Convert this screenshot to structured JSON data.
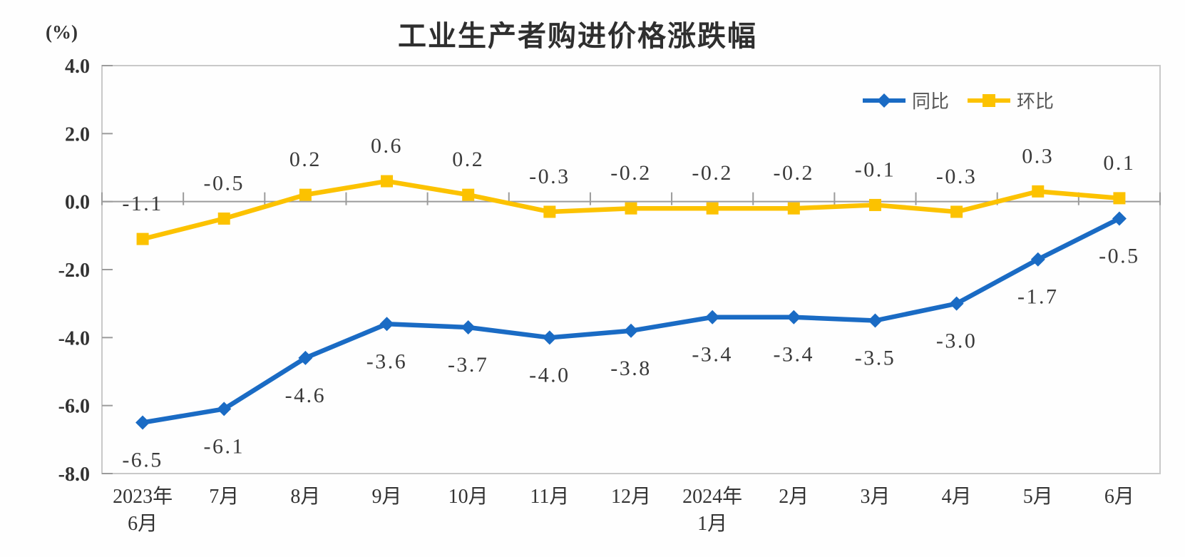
{
  "title": "工业生产者购进价格涨跌幅",
  "unit_label": "(%)",
  "chart_data": {
    "type": "line",
    "title": "工业生产者购进价格涨跌幅",
    "ylabel_unit": "(%)",
    "ylim": [
      -8,
      4
    ],
    "grid": false,
    "legend_position": "top-right-inside",
    "yticks": [
      {
        "value": 4,
        "label": "4.0"
      },
      {
        "value": 2,
        "label": "2.0"
      },
      {
        "value": 0,
        "label": "0.0"
      },
      {
        "value": -2,
        "label": "-2.0"
      },
      {
        "value": -4,
        "label": "-4.0"
      },
      {
        "value": -6,
        "label": "-6.0"
      },
      {
        "value": -8,
        "label": "-8.0"
      }
    ],
    "categories": [
      [
        "2023年",
        "6月"
      ],
      [
        "7月"
      ],
      [
        "8月"
      ],
      [
        "9月"
      ],
      [
        "10月"
      ],
      [
        "11月"
      ],
      [
        "12月"
      ],
      [
        "2024年",
        "1月"
      ],
      [
        "2月"
      ],
      [
        "3月"
      ],
      [
        "4月"
      ],
      [
        "5月"
      ],
      [
        "6月"
      ]
    ],
    "series": [
      {
        "id": "yoy",
        "name": "同比",
        "marker": "diamond",
        "color": "#1a6bc4",
        "label_position": "below",
        "values": [
          -6.5,
          -6.1,
          -4.6,
          -3.6,
          -3.7,
          -4.0,
          -3.8,
          -3.4,
          -3.4,
          -3.5,
          -3.0,
          -1.7,
          -0.5
        ],
        "labels": [
          "-6.5",
          "-6.1",
          "-4.6",
          "-3.6",
          "-3.7",
          "-4.0",
          "-3.8",
          "-3.4",
          "-3.4",
          "-3.5",
          "-3.0",
          "-1.7",
          "-0.5"
        ]
      },
      {
        "id": "mom",
        "name": "环比",
        "marker": "square",
        "color": "#fcc200",
        "label_position": "above",
        "values": [
          -1.1,
          -0.5,
          0.2,
          0.6,
          0.2,
          -0.3,
          -0.2,
          -0.2,
          -0.2,
          -0.1,
          -0.3,
          0.3,
          0.1
        ],
        "labels": [
          "-1.1",
          "-0.5",
          "0.2",
          "0.6",
          "0.2",
          "-0.3",
          "-0.2",
          "-0.2",
          "-0.2",
          "-0.1",
          "-0.3",
          "0.3",
          "0.1"
        ]
      }
    ],
    "colors": {
      "axis": "#9b9b9b",
      "plot_border": "#c9c9c9",
      "label_text": "#3a3a3a",
      "tick_text": "#333333",
      "title_text": "#2f2f2f",
      "legend_text": "#555555"
    }
  }
}
